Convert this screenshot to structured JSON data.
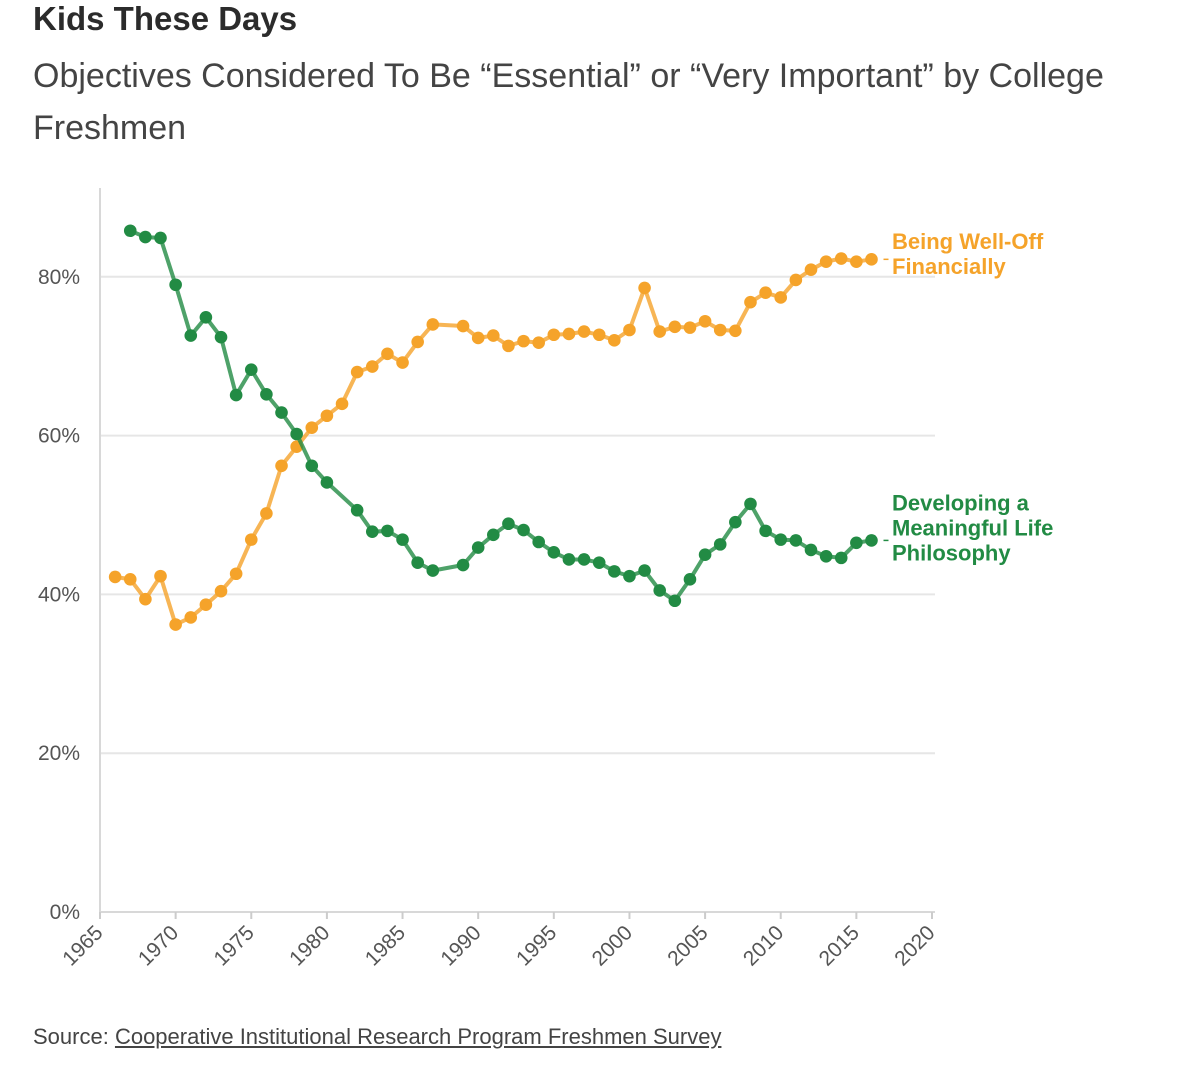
{
  "header": {
    "title": "Kids These Days",
    "subtitle": "Objectives Considered To Be “Essential” or “Very Important” by College Freshmen"
  },
  "footer": {
    "source_prefix": "Source:",
    "source_link": "Cooperative Institutional Research Program Freshmen Survey"
  },
  "chart_data": {
    "type": "line",
    "title": "Kids These Days",
    "subtitle": "Objectives Considered To Be “Essential” or “Very Important” by College Freshmen",
    "xlabel": "",
    "ylabel": "",
    "xlim": [
      1965,
      2020
    ],
    "ylim": [
      0,
      90
    ],
    "xticks": [
      1965,
      1970,
      1975,
      1980,
      1985,
      1990,
      1995,
      2000,
      2005,
      2010,
      2015,
      2020
    ],
    "yticks": [
      0,
      20,
      40,
      60,
      80
    ],
    "ytick_labels": [
      "0%",
      "20%",
      "40%",
      "60%",
      "80%"
    ],
    "grid": true,
    "series": [
      {
        "name": "Being Well-Off Financially",
        "label_lines": [
          "Being Well-Off",
          "Financially"
        ],
        "color": "#f5a32a",
        "points": [
          [
            1966,
            42.2
          ],
          [
            1967,
            41.9
          ],
          [
            1968,
            39.4
          ],
          [
            1969,
            42.3
          ],
          [
            1970,
            36.2
          ],
          [
            1971,
            37.1
          ],
          [
            1972,
            38.7
          ],
          [
            1973,
            40.4
          ],
          [
            1974,
            42.6
          ],
          [
            1975,
            46.9
          ],
          [
            1976,
            50.2
          ],
          [
            1977,
            56.2
          ],
          [
            1978,
            58.6
          ],
          [
            1979,
            61.0
          ],
          [
            1980,
            62.5
          ],
          [
            1981,
            64.0
          ],
          [
            1982,
            68.0
          ],
          [
            1983,
            68.7
          ],
          [
            1984,
            70.3
          ],
          [
            1985,
            69.2
          ],
          [
            1986,
            71.8
          ],
          [
            1987,
            74.0
          ],
          [
            1989,
            73.8
          ],
          [
            1990,
            72.3
          ],
          [
            1991,
            72.6
          ],
          [
            1992,
            71.3
          ],
          [
            1993,
            71.9
          ],
          [
            1994,
            71.7
          ],
          [
            1995,
            72.7
          ],
          [
            1996,
            72.8
          ],
          [
            1997,
            73.1
          ],
          [
            1998,
            72.7
          ],
          [
            1999,
            72.0
          ],
          [
            2000,
            73.3
          ],
          [
            2001,
            78.6
          ],
          [
            2002,
            73.1
          ],
          [
            2003,
            73.7
          ],
          [
            2004,
            73.6
          ],
          [
            2005,
            74.4
          ],
          [
            2006,
            73.3
          ],
          [
            2007,
            73.2
          ],
          [
            2008,
            76.8
          ],
          [
            2009,
            78.0
          ],
          [
            2010,
            77.4
          ],
          [
            2011,
            79.6
          ],
          [
            2012,
            80.9
          ],
          [
            2013,
            81.9
          ],
          [
            2014,
            82.3
          ],
          [
            2015,
            81.9
          ],
          [
            2016,
            82.2
          ]
        ]
      },
      {
        "name": "Developing a Meaningful Life Philosophy",
        "label_lines": [
          "Developing a",
          "Meaningful Life",
          "Philosophy"
        ],
        "color": "#228b44",
        "points": [
          [
            1967,
            85.8
          ],
          [
            1968,
            85.0
          ],
          [
            1969,
            84.9
          ],
          [
            1970,
            79.0
          ],
          [
            1971,
            72.6
          ],
          [
            1972,
            74.9
          ],
          [
            1973,
            72.4
          ],
          [
            1974,
            65.1
          ],
          [
            1975,
            68.3
          ],
          [
            1976,
            65.2
          ],
          [
            1977,
            62.9
          ],
          [
            1978,
            60.2
          ],
          [
            1979,
            56.2
          ],
          [
            1980,
            54.1
          ],
          [
            1982,
            50.6
          ],
          [
            1983,
            47.9
          ],
          [
            1984,
            48.0
          ],
          [
            1985,
            46.9
          ],
          [
            1986,
            44.0
          ],
          [
            1987,
            43.0
          ],
          [
            1989,
            43.7
          ],
          [
            1990,
            45.9
          ],
          [
            1991,
            47.5
          ],
          [
            1992,
            48.9
          ],
          [
            1993,
            48.1
          ],
          [
            1994,
            46.6
          ],
          [
            1995,
            45.3
          ],
          [
            1996,
            44.4
          ],
          [
            1997,
            44.4
          ],
          [
            1998,
            44.0
          ],
          [
            1999,
            42.9
          ],
          [
            2000,
            42.3
          ],
          [
            2001,
            43.0
          ],
          [
            2002,
            40.5
          ],
          [
            2003,
            39.2
          ],
          [
            2004,
            41.9
          ],
          [
            2005,
            45.0
          ],
          [
            2006,
            46.3
          ],
          [
            2007,
            49.1
          ],
          [
            2008,
            51.4
          ],
          [
            2009,
            48.0
          ],
          [
            2010,
            46.9
          ],
          [
            2011,
            46.8
          ],
          [
            2012,
            45.6
          ],
          [
            2013,
            44.8
          ],
          [
            2014,
            44.6
          ],
          [
            2015,
            46.5
          ],
          [
            2016,
            46.8
          ]
        ]
      }
    ]
  }
}
